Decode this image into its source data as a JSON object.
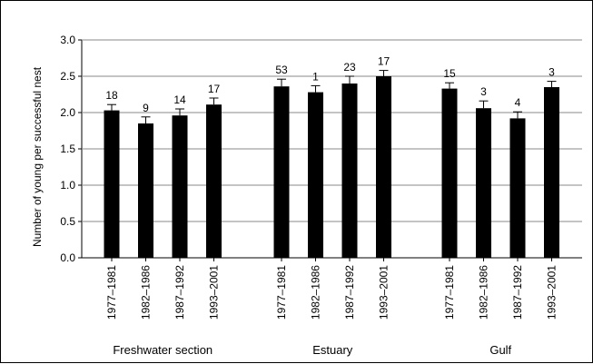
{
  "chart_data": {
    "type": "bar",
    "ylabel": "Number of young per successful nest",
    "ylim": [
      0,
      3.0
    ],
    "yticks": [
      "0.0",
      "0.5",
      "1.0",
      "1.5",
      "2.0",
      "2.5",
      "3.0"
    ],
    "grid": "horizontal",
    "bar_color": "#000000",
    "groups": [
      {
        "name": "Freshwater section",
        "categories": [
          "1977–1981",
          "1982–1986",
          "1987–1992",
          "1993–2001"
        ],
        "values": [
          2.03,
          1.85,
          1.96,
          2.11
        ],
        "errors": [
          0.08,
          0.09,
          0.09,
          0.09
        ],
        "labels": [
          "18",
          "9",
          "14",
          "17"
        ]
      },
      {
        "name": "Estuary",
        "categories": [
          "1977–1981",
          "1982–1986",
          "1987–1992",
          "1993–2001"
        ],
        "values": [
          2.36,
          2.28,
          2.4,
          2.5
        ],
        "errors": [
          0.1,
          0.09,
          0.1,
          0.08
        ],
        "labels": [
          "53",
          "1",
          "23",
          "17"
        ]
      },
      {
        "name": "Gulf",
        "categories": [
          "1977–1981",
          "1982–1986",
          "1987–1992",
          "1993–2001"
        ],
        "values": [
          2.33,
          2.06,
          1.92,
          2.35
        ],
        "errors": [
          0.08,
          0.1,
          0.09,
          0.08
        ],
        "labels": [
          "15",
          "3",
          "4",
          "3"
        ]
      }
    ]
  }
}
